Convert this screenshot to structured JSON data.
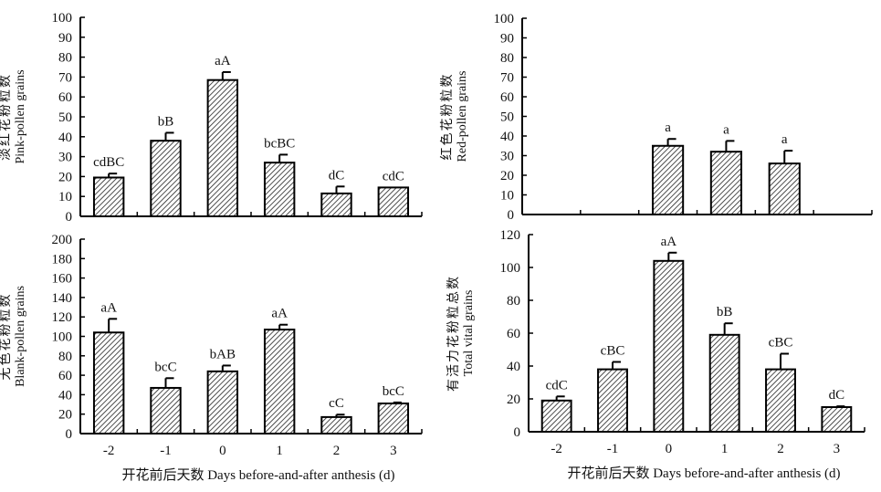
{
  "chart_data": [
    {
      "type": "bar",
      "ylabel_cn": "淡红花粉粒数",
      "ylabel": "Pink-pollen grains",
      "ylim": [
        0,
        100
      ],
      "yticks": [
        0,
        10,
        20,
        30,
        40,
        50,
        60,
        70,
        80,
        90,
        100
      ],
      "categories": [
        "-2",
        "-1",
        "0",
        "1",
        "2",
        "3"
      ],
      "values": [
        19.5,
        38,
        68.5,
        27,
        11.5,
        14.5
      ],
      "errors": [
        2,
        4,
        4,
        4,
        3.5,
        0
      ],
      "letters": [
        "cdBC",
        "bB",
        "aA",
        "bcBC",
        "dC",
        "cdC"
      ],
      "show_xticks": false
    },
    {
      "type": "bar",
      "ylabel_cn": "红色花粉粒数",
      "ylabel": "Red-pollen grains",
      "ylim": [
        0,
        100
      ],
      "yticks": [
        0,
        10,
        20,
        30,
        40,
        50,
        60,
        70,
        80,
        90,
        100
      ],
      "categories": [
        "-2",
        "-1",
        "0",
        "1",
        "2",
        "3"
      ],
      "values": [
        null,
        null,
        35,
        32,
        26,
        null
      ],
      "errors": [
        null,
        null,
        3.5,
        5.5,
        6.5,
        null
      ],
      "letters": [
        "",
        "",
        "a",
        "a",
        "a",
        ""
      ],
      "show_xticks": false
    },
    {
      "type": "bar",
      "ylabel_cn": "无色花粉粒数",
      "ylabel": "Blank-pollen grains",
      "ylim": [
        0,
        200
      ],
      "yticks": [
        0,
        20,
        40,
        60,
        80,
        100,
        120,
        140,
        160,
        180,
        200
      ],
      "categories": [
        "-2",
        "-1",
        "0",
        "1",
        "2",
        "3"
      ],
      "values": [
        104,
        47,
        64,
        107,
        17,
        31
      ],
      "errors": [
        14,
        10,
        6,
        5,
        2.5,
        1
      ],
      "letters": [
        "aA",
        "bcC",
        "bAB",
        "aA",
        "cC",
        "bcC"
      ],
      "show_xticks": true,
      "xlabel": "开花前后天数 Days before-and-after anthesis (d)"
    },
    {
      "type": "bar",
      "ylabel_cn": "有活力花粉粒总数",
      "ylabel": "Total vital grains",
      "ylim": [
        0,
        120
      ],
      "yticks": [
        0,
        20,
        40,
        60,
        80,
        100,
        120
      ],
      "categories": [
        "-2",
        "-1",
        "0",
        "1",
        "2",
        "3"
      ],
      "values": [
        19,
        38,
        104,
        59,
        38,
        15
      ],
      "errors": [
        2.5,
        4.5,
        5,
        7,
        9.5,
        0.5
      ],
      "letters": [
        "cdC",
        "cBC",
        "aA",
        "bB",
        "cBC",
        "dC"
      ],
      "show_xticks": true,
      "xlabel": "开花前后天数 Days before-and-after anthesis (d)"
    }
  ]
}
